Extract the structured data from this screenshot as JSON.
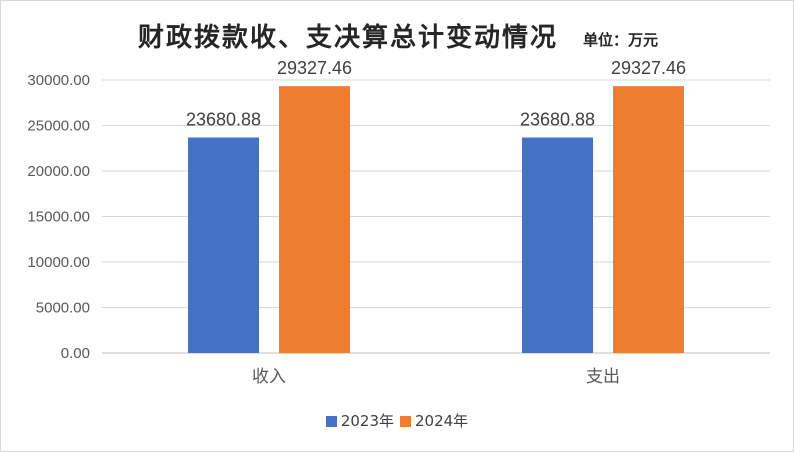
{
  "title": "财政拨款收、支决算总计变动情况",
  "unit": "单位：万元",
  "colors": {
    "2023年": "#4472c4",
    "2024年": "#ed7d31"
  },
  "chart_data": {
    "type": "bar",
    "title": "财政拨款收、支决算总计变动情况",
    "xlabel": "",
    "ylabel": "",
    "categories": [
      "收入",
      "支出"
    ],
    "series": [
      {
        "name": "2023年",
        "values": [
          23680.88,
          23680.88
        ],
        "labels": [
          "23680.88",
          "23680.88"
        ]
      },
      {
        "name": "2024年",
        "values": [
          29327.46,
          29327.46
        ],
        "labels": [
          "29327.46",
          "29327.46"
        ]
      }
    ],
    "ylim": [
      0,
      30000
    ],
    "yticks": [
      "0.00",
      "5000.00",
      "10000.00",
      "15000.00",
      "20000.00",
      "25000.00",
      "30000.00"
    ],
    "grid": true,
    "legend": "bottom"
  }
}
